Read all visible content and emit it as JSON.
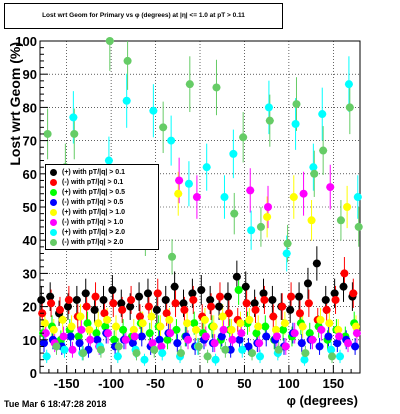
{
  "title": "Lost wrt Geom for Primary vs φ (degrees) at |η| <= 1.0 at pT > 0.11",
  "footer_date": "Tue Mar  6 18:47:28 2018",
  "chart_data": {
    "type": "scatter",
    "title": "Lost wrt Geom for Primary vs φ (degrees) at |η| <= 1.0 at pT > 0.11",
    "xlabel": "φ (degrees)",
    "ylabel": "Lost  wrt  Geom (%)",
    "xlim": [
      -180,
      180
    ],
    "ylim": [
      0,
      100
    ],
    "xticks": [
      -150,
      -100,
      -50,
      0,
      50,
      100,
      150
    ],
    "yticks": [
      0,
      10,
      20,
      30,
      40,
      50,
      60,
      70,
      80,
      90,
      100
    ],
    "grid": true,
    "legend_position": "left-middle",
    "series": [
      {
        "name": "(+) with pT/|q| > 0.1",
        "color": "#000000",
        "x": [
          -175,
          -165,
          -155,
          -145,
          -135,
          -125,
          -115,
          -105,
          -95,
          -85,
          -75,
          -65,
          -55,
          -45,
          -35,
          -25,
          -15,
          -5,
          5,
          15,
          25,
          35,
          45,
          55,
          65,
          75,
          85,
          95,
          105,
          115,
          125,
          135,
          145,
          155,
          165,
          175
        ],
        "y": [
          22,
          23,
          18,
          20,
          22,
          24,
          19,
          22,
          25,
          21,
          20,
          23,
          24,
          19,
          22,
          26,
          21,
          24,
          25,
          22,
          20,
          23,
          29,
          26,
          21,
          24,
          22,
          20,
          19,
          23,
          27,
          33,
          22,
          24,
          26,
          23
        ]
      },
      {
        "name": "(-) with pT/|q| > 0.1",
        "color": "#ff0000",
        "x": [
          -175,
          -165,
          -155,
          -145,
          -135,
          -125,
          -115,
          -105,
          -95,
          -85,
          -75,
          -65,
          -55,
          -45,
          -35,
          -25,
          -15,
          -5,
          5,
          15,
          25,
          35,
          45,
          55,
          65,
          75,
          85,
          95,
          105,
          115,
          125,
          135,
          145,
          155,
          165,
          175
        ],
        "y": [
          18,
          21,
          19,
          22,
          17,
          20,
          23,
          18,
          21,
          19,
          22,
          17,
          20,
          24,
          18,
          21,
          19,
          22,
          17,
          20,
          23,
          18,
          16,
          21,
          19,
          22,
          17,
          20,
          23,
          18,
          21,
          16,
          19,
          22,
          30,
          24
        ]
      },
      {
        "name": "(+) with pT/|q| > 0.5",
        "color": "#00ff00",
        "x": [
          -175,
          -165,
          -155,
          -145,
          -135,
          -125,
          -115,
          -105,
          -95,
          -85,
          -75,
          -65,
          -55,
          -45,
          -35,
          -25,
          -15,
          -5,
          5,
          15,
          25,
          35,
          45,
          55,
          65,
          75,
          85,
          95,
          105,
          115,
          125,
          135,
          145,
          155,
          165,
          175
        ],
        "y": [
          12,
          14,
          10,
          13,
          11,
          15,
          12,
          14,
          10,
          13,
          11,
          15,
          12,
          14,
          10,
          13,
          11,
          15,
          12,
          14,
          10,
          13,
          25,
          15,
          12,
          14,
          10,
          13,
          11,
          15,
          12,
          14,
          10,
          13,
          11,
          15
        ]
      },
      {
        "name": "(-) with pT/|q| > 0.5",
        "color": "#0000ff",
        "x": [
          -175,
          -165,
          -155,
          -145,
          -135,
          -125,
          -115,
          -105,
          -95,
          -85,
          -75,
          -65,
          -55,
          -45,
          -35,
          -25,
          -15,
          -5,
          5,
          15,
          25,
          35,
          45,
          55,
          65,
          75,
          85,
          95,
          105,
          115,
          125,
          135,
          145,
          155,
          165,
          175
        ],
        "y": [
          9,
          10,
          8,
          11,
          9,
          7,
          10,
          12,
          8,
          10,
          9,
          11,
          8,
          10,
          12,
          9,
          11,
          8,
          10,
          9,
          11,
          7,
          10,
          8,
          9,
          11,
          10,
          8,
          12,
          9,
          10,
          8,
          11,
          9,
          10,
          8
        ]
      },
      {
        "name": "(+) with pT/|q| > 1.0",
        "color": "#ffff00",
        "x": [
          -175,
          -165,
          -155,
          -145,
          -135,
          -125,
          -115,
          -105,
          -95,
          -85,
          -75,
          -65,
          -55,
          -45,
          -35,
          -25,
          -15,
          -5,
          5,
          15,
          25,
          35,
          45,
          55,
          65,
          75,
          85,
          95,
          105,
          115,
          125,
          135,
          145,
          155,
          165,
          175
        ],
        "y": [
          15,
          13,
          16,
          14,
          17,
          13,
          15,
          16,
          14,
          55,
          13,
          15,
          17,
          14,
          16,
          54,
          15,
          13,
          16,
          14,
          17,
          13,
          15,
          16,
          14,
          47,
          13,
          15,
          53,
          14,
          46,
          16,
          15,
          13,
          50,
          14
        ]
      },
      {
        "name": "(-) with pT/|q| > 1.0",
        "color": "#ff00ff",
        "x": [
          -175,
          -165,
          -155,
          -145,
          -135,
          -125,
          -115,
          -105,
          -95,
          -85,
          -75,
          -65,
          -55,
          -45,
          -35,
          -25,
          -15,
          -5,
          5,
          15,
          25,
          35,
          45,
          55,
          65,
          75,
          85,
          95,
          105,
          115,
          125,
          135,
          145,
          155,
          165,
          175
        ],
        "y": [
          12,
          9,
          11,
          7,
          13,
          10,
          8,
          12,
          55,
          10,
          11,
          54,
          9,
          8,
          12,
          58,
          10,
          53,
          11,
          9,
          13,
          10,
          12,
          55,
          9,
          50,
          11,
          8,
          12,
          54,
          10,
          13,
          56,
          11,
          9,
          12
        ]
      },
      {
        "name": "(+) with pT/|q| > 2.0",
        "color": "#00ffff",
        "x": [
          -175,
          -165,
          -155,
          -145,
          -135,
          -125,
          -115,
          -105,
          -95,
          -85,
          -75,
          -65,
          -55,
          -45,
          -35,
          -25,
          -15,
          -5,
          5,
          15,
          25,
          35,
          45,
          55,
          65,
          75,
          85,
          95,
          105,
          115,
          125,
          135,
          145,
          155,
          165,
          175
        ],
        "y": [
          5,
          47,
          7,
          77,
          6,
          46,
          8,
          64,
          5,
          82,
          7,
          4,
          79,
          6,
          70,
          5,
          57,
          8,
          62,
          4,
          53,
          66,
          7,
          43,
          5,
          80,
          6,
          36,
          75,
          4,
          62,
          78,
          7,
          5,
          87,
          53
        ]
      },
      {
        "name": "(-) with pT/|q| > 2.0",
        "color": "#66cc66",
        "x": [
          -175,
          -165,
          -155,
          -145,
          -135,
          -125,
          -115,
          -105,
          -95,
          -85,
          -75,
          -65,
          -55,
          -45,
          -35,
          -25,
          -15,
          -5,
          5,
          15,
          25,
          35,
          45,
          55,
          65,
          75,
          85,
          95,
          105,
          115,
          125,
          135,
          145,
          155,
          165,
          175
        ],
        "y": [
          72,
          8,
          62,
          72,
          6,
          50,
          7,
          100,
          8,
          94,
          6,
          41,
          7,
          74,
          35,
          6,
          87,
          8,
          5,
          86,
          7,
          48,
          71,
          6,
          44,
          76,
          7,
          39,
          81,
          6,
          60,
          67,
          5,
          46,
          80,
          44
        ]
      }
    ]
  }
}
